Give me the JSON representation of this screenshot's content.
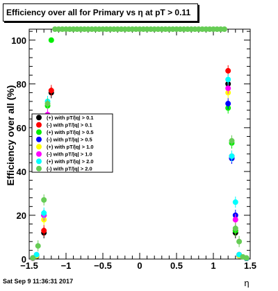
{
  "chart_data": {
    "type": "scatter",
    "title": "Efficiency over all for Primary vs   η at pT > 0.11",
    "xlabel": "η",
    "ylabel": "Efficiency over all (%)",
    "xlim": [
      -1.5,
      1.5
    ],
    "ylim": [
      0,
      105
    ],
    "x_ticks": [
      -1.5,
      -1,
      -0.5,
      0,
      0.5,
      1,
      1.5
    ],
    "x_tick_labels": [
      "−1.5",
      "−1",
      "−0.5",
      "0",
      "0.5",
      "1",
      "1.5"
    ],
    "y_ticks": [
      0,
      20,
      40,
      60,
      80,
      100
    ],
    "y_tick_labels": [
      "0",
      "20",
      "40",
      "60",
      "80",
      "100"
    ],
    "grid": false,
    "legend_position": "left-middle",
    "series": [
      {
        "name": "(+) with pT/|q| > 0.1",
        "color": "#000000",
        "points": [
          [
            -1.45,
            0.4
          ],
          [
            -1.4,
            1.2
          ],
          [
            -1.3,
            12
          ],
          [
            -1.25,
            63
          ],
          [
            -1.2,
            76
          ],
          [
            1.2,
            80
          ],
          [
            1.25,
            46
          ],
          [
            1.3,
            12
          ],
          [
            1.35,
            1.5
          ],
          [
            1.45,
            0.3
          ]
        ]
      },
      {
        "name": "(-) with pT/|q| > 0.1",
        "color": "#ff0000",
        "points": [
          [
            -1.45,
            0.4
          ],
          [
            -1.4,
            1.5
          ],
          [
            -1.3,
            13
          ],
          [
            -1.25,
            42
          ],
          [
            -1.2,
            77
          ],
          [
            1.2,
            86
          ],
          [
            1.25,
            47
          ],
          [
            1.3,
            13
          ],
          [
            1.35,
            2
          ],
          [
            1.45,
            0.3
          ]
        ]
      },
      {
        "name": "(+) with pT/|q| > 0.5",
        "color": "#00ee00",
        "points": [
          [
            -1.45,
            0.5
          ],
          [
            -1.4,
            1.5
          ],
          [
            -1.3,
            20
          ],
          [
            -1.25,
            70
          ],
          [
            -1.2,
            100
          ],
          [
            1.2,
            69
          ],
          [
            1.25,
            53
          ],
          [
            1.3,
            13
          ],
          [
            1.35,
            2
          ],
          [
            1.45,
            0.3
          ]
        ]
      },
      {
        "name": "(-) with pT/|q| > 0.5",
        "color": "#0000ff",
        "points": [
          [
            -1.45,
            0.5
          ],
          [
            -1.4,
            1.5
          ],
          [
            -1.3,
            20
          ],
          [
            -1.25,
            65
          ],
          [
            1.2,
            71
          ],
          [
            1.25,
            46
          ],
          [
            1.3,
            20
          ],
          [
            1.35,
            1.5
          ],
          [
            1.45,
            0.3
          ]
        ]
      },
      {
        "name": "(+) with pT/|q| > 1.0",
        "color": "#ffff00",
        "points": [
          [
            -1.45,
            0.4
          ],
          [
            -1.4,
            1.5
          ],
          [
            -1.3,
            18
          ],
          [
            -1.25,
            64
          ],
          [
            1.2,
            76
          ],
          [
            1.25,
            47
          ],
          [
            1.3,
            18
          ],
          [
            1.35,
            1.5
          ]
        ]
      },
      {
        "name": "(-) with pT/|q| > 1.0",
        "color": "#ff00ff",
        "points": [
          [
            -1.45,
            0.4
          ],
          [
            -1.4,
            2
          ],
          [
            -1.3,
            20
          ],
          [
            -1.25,
            66
          ],
          [
            1.2,
            78
          ],
          [
            1.25,
            47
          ],
          [
            1.3,
            18
          ],
          [
            1.35,
            2
          ],
          [
            1.45,
            0.4
          ]
        ]
      },
      {
        "name": "(+) with pT/|q| > 2.0",
        "color": "#00ffff",
        "points": [
          [
            -1.45,
            0.5
          ],
          [
            -1.4,
            2
          ],
          [
            -1.3,
            21
          ],
          [
            -1.25,
            72
          ],
          [
            1.2,
            82
          ],
          [
            1.25,
            47
          ],
          [
            1.3,
            26
          ],
          [
            1.35,
            2
          ],
          [
            1.45,
            0.4
          ]
        ]
      },
      {
        "name": "(-) with pT/|q| > 2.0",
        "color": "#66cc55",
        "points": [
          [
            -1.45,
            0.5
          ],
          [
            -1.38,
            6
          ],
          [
            -1.3,
            27
          ],
          [
            -1.25,
            71
          ],
          [
            -1.15,
            105
          ],
          [
            -1.1,
            105
          ],
          [
            -1.05,
            105
          ],
          [
            -1,
            105
          ],
          [
            -0.95,
            105
          ],
          [
            -0.9,
            105
          ],
          [
            -0.85,
            105
          ],
          [
            -0.8,
            105
          ],
          [
            -0.75,
            105
          ],
          [
            -0.7,
            105
          ],
          [
            -0.65,
            105
          ],
          [
            -0.6,
            105
          ],
          [
            -0.55,
            105
          ],
          [
            -0.5,
            105
          ],
          [
            -0.45,
            105
          ],
          [
            -0.4,
            105
          ],
          [
            -0.35,
            105
          ],
          [
            -0.3,
            105
          ],
          [
            -0.25,
            105
          ],
          [
            -0.2,
            105
          ],
          [
            -0.15,
            105
          ],
          [
            -0.1,
            105
          ],
          [
            -0.05,
            105
          ],
          [
            0,
            105
          ],
          [
            0.05,
            105
          ],
          [
            0.1,
            105
          ],
          [
            0.15,
            105
          ],
          [
            0.2,
            105
          ],
          [
            0.25,
            105
          ],
          [
            0.3,
            105
          ],
          [
            0.35,
            105
          ],
          [
            0.4,
            105
          ],
          [
            0.45,
            105
          ],
          [
            0.5,
            105
          ],
          [
            0.55,
            105
          ],
          [
            0.6,
            105
          ],
          [
            0.65,
            105
          ],
          [
            0.7,
            105
          ],
          [
            0.75,
            105
          ],
          [
            0.8,
            105
          ],
          [
            0.85,
            105
          ],
          [
            0.9,
            105
          ],
          [
            0.95,
            105
          ],
          [
            1,
            105
          ],
          [
            1.05,
            105
          ],
          [
            1.1,
            105
          ],
          [
            1.15,
            105
          ],
          [
            1.25,
            54
          ],
          [
            1.3,
            14
          ],
          [
            1.35,
            8
          ],
          [
            1.4,
            1
          ],
          [
            1.45,
            0.5
          ]
        ]
      }
    ]
  },
  "footer": {
    "timestamp": "Sat Sep  9 11:36:31 2017"
  }
}
